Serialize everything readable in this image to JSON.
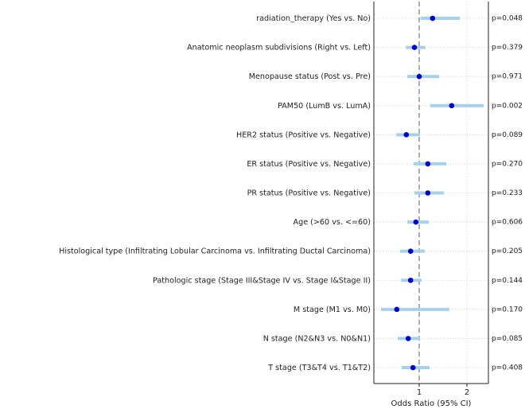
{
  "chart_data": {
    "type": "forest",
    "xlabel": "Odds Ratio (95% CI)",
    "categories": [
      "radiation_therapy (Yes vs. No)",
      "Anatomic neoplasm subdivisions (Right vs. Left)",
      "Menopause status (Post vs. Pre)",
      "PAM50 (LumB vs. LumA)",
      "HER2 status (Positive vs. Negative)",
      "ER status (Positive vs. Negative)",
      "PR status (Positive vs. Negative)",
      "Age (>60 vs. <=60)",
      "Histological type (Infiltrating Lobular Carcinoma vs. Infiltrating Ductal Carcinoma)",
      "Pathologic stage (Stage III&Stage IV vs. Stage I&Stage II)",
      "M stage (M1 vs. M0)",
      "N stage (N2&N3 vs. N0&N1)",
      "T stage (T3&T4 vs. T1&T2)"
    ],
    "values": [
      1.28,
      0.9,
      1.0,
      1.68,
      0.73,
      1.18,
      1.18,
      0.93,
      0.82,
      0.82,
      0.53,
      0.77,
      0.87
    ],
    "ci_low": [
      1.03,
      0.72,
      0.75,
      1.23,
      0.52,
      0.88,
      0.9,
      0.75,
      0.6,
      0.62,
      0.2,
      0.55,
      0.63
    ],
    "ci_high": [
      1.85,
      1.13,
      1.42,
      2.35,
      1.02,
      1.57,
      1.52,
      1.2,
      1.12,
      1.05,
      1.63,
      1.02,
      1.22
    ],
    "p_values": [
      "p=0.048",
      "p=0.379",
      "p=0.971",
      "p=0.002",
      "p=0.089",
      "p=0.270",
      "p=0.233",
      "p=0.606",
      "p=0.205",
      "p=0.144",
      "p=0.170",
      "p=0.085",
      "p=0.408"
    ],
    "color": "#0000cc",
    "ci_color": "#a6d1ea",
    "xlim": [
      0.05,
      2.45
    ],
    "xticks": [
      1,
      2
    ],
    "reference_x": 1,
    "grid": true
  }
}
